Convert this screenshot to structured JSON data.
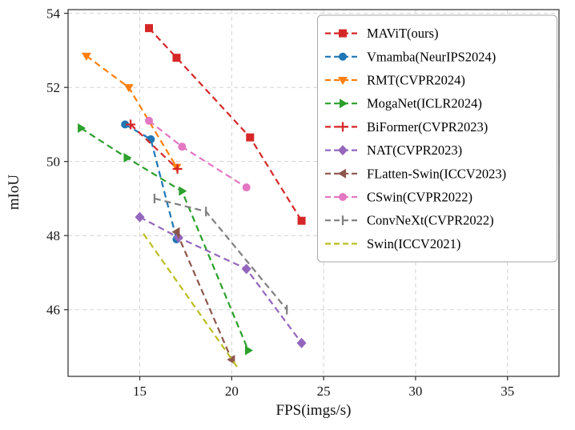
{
  "chart_data": {
    "type": "line",
    "title": "",
    "xlabel": "FPS(imgs/s)",
    "ylabel": "mIoU",
    "xlim": [
      11.1,
      37.8
    ],
    "ylim": [
      44.2,
      54.1
    ],
    "xticks": [
      15,
      20,
      25,
      30,
      35
    ],
    "yticks": [
      46,
      48,
      50,
      52,
      54
    ],
    "grid": true,
    "grid_style": "dashed",
    "legend_position": "upper right",
    "series": [
      {
        "name": "MAViT(ours)",
        "color": "#d62728",
        "marker": "square",
        "linestyle": "dashed",
        "points": [
          [
            15.5,
            53.6
          ],
          [
            17.0,
            52.8
          ],
          [
            21.0,
            50.65
          ],
          [
            23.8,
            48.4
          ]
        ]
      },
      {
        "name": "Vmamba(NeurIPS2024)",
        "color": "#1f77b4",
        "marker": "circle",
        "linestyle": "dashed",
        "points": [
          [
            14.2,
            51.0
          ],
          [
            15.6,
            50.6
          ],
          [
            17.0,
            47.9
          ]
        ]
      },
      {
        "name": "RMT(CVPR2024)",
        "color": "#ff7f0e",
        "marker": "triangle-down",
        "linestyle": "dashed",
        "points": [
          [
            12.1,
            52.85
          ],
          [
            14.4,
            52.0
          ],
          [
            17.0,
            49.85
          ]
        ]
      },
      {
        "name": "MogaNet(ICLR2024)",
        "color": "#2ca02c",
        "marker": "triangle-right",
        "linestyle": "dashed",
        "points": [
          [
            11.8,
            50.9
          ],
          [
            14.3,
            50.1
          ],
          [
            17.3,
            49.2
          ],
          [
            20.9,
            44.9
          ]
        ]
      },
      {
        "name": "BiFormer(CVPR2023)",
        "color": "#d62728",
        "marker": "plus",
        "linestyle": "dashed",
        "points": [
          [
            14.5,
            51.0
          ],
          [
            17.05,
            49.8
          ]
        ]
      },
      {
        "name": "NAT(CVPR2023)",
        "color": "#9467bd",
        "marker": "diamond",
        "linestyle": "dashed",
        "points": [
          [
            15.0,
            48.5
          ],
          [
            17.1,
            47.95
          ],
          [
            20.8,
            47.1
          ],
          [
            23.8,
            45.1
          ]
        ]
      },
      {
        "name": "FLatten-Swin(ICCV2023)",
        "color": "#8c564b",
        "marker": "triangle-left",
        "linestyle": "dashed",
        "points": [
          [
            17.0,
            48.1
          ],
          [
            20.0,
            44.65
          ]
        ]
      },
      {
        "name": "CSwin(CVPR2022)",
        "color": "#e377c2",
        "marker": "circle",
        "linestyle": "dashed",
        "points": [
          [
            15.5,
            51.1
          ],
          [
            17.3,
            50.4
          ],
          [
            20.8,
            49.3
          ]
        ]
      },
      {
        "name": "ConvNeXt(CVPR2022)",
        "color": "#7f7f7f",
        "marker": "tick",
        "linestyle": "dashed",
        "points": [
          [
            15.8,
            49.0
          ],
          [
            18.6,
            48.65
          ],
          [
            23.0,
            46.0
          ]
        ]
      },
      {
        "name": "Swin(ICCV2021)",
        "color": "#bcbd22",
        "marker": "none",
        "linestyle": "dashed",
        "points": [
          [
            15.2,
            48.05
          ],
          [
            20.3,
            44.45
          ]
        ]
      }
    ]
  }
}
